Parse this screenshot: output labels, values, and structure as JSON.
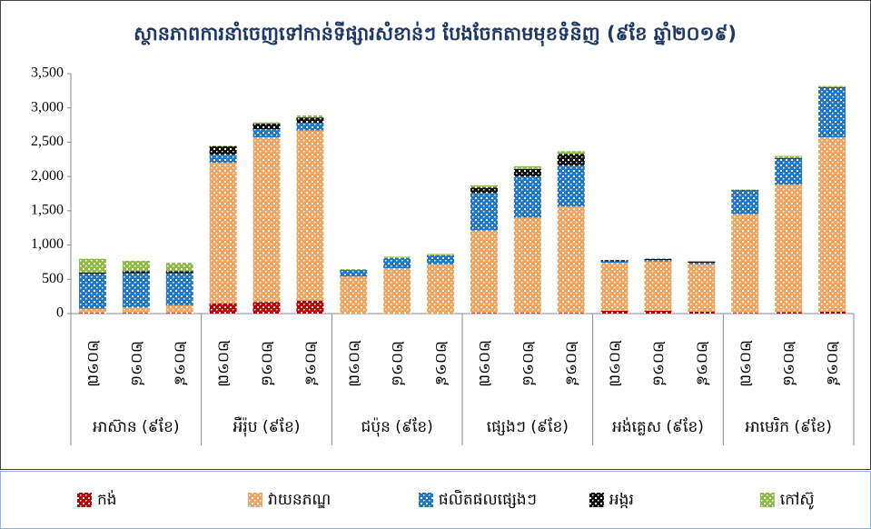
{
  "chart_data": {
    "type": "stacked_bar",
    "title": "ស្ថានភាពការនាំចេញទៅកាន់ទីផ្សារសំខាន់ៗ បែងចែកតាមមុខទំនិញ (៩ខែ ឆ្នាំ២០១៩)",
    "categories": [
      "២០១៧",
      "២០១៨",
      "២០១៩",
      "២០១៧",
      "២០១៨",
      "២០១៩",
      "២០១៧",
      "២០១៨",
      "២០១៩",
      "២០១៧",
      "២០១៨",
      "២០១៩",
      "២០១៧",
      "២០១៨",
      "២០១៩",
      "២០១៧",
      "២០១៨",
      "២០១៩"
    ],
    "groups": [
      "អាស៊ាន (៩ខែ)",
      "អឺរ៉ុប (៩ខែ)",
      "ជប៉ុន (៩ខែ)",
      "ផ្សេងៗ (៩ខែ)",
      "អង់គ្លេស (៩ខែ)",
      "អាមេរិក (៩ខែ)"
    ],
    "series": [
      {
        "name": "កង់",
        "color": "#c00000",
        "values": [
          10,
          10,
          10,
          150,
          170,
          190,
          0,
          0,
          0,
          10,
          10,
          10,
          40,
          40,
          30,
          10,
          20,
          30
        ]
      },
      {
        "name": "វាយនភណ្ឌ",
        "color": "#f4a460",
        "values": [
          60,
          80,
          110,
          2050,
          2400,
          2480,
          540,
          660,
          720,
          1200,
          1390,
          1550,
          700,
          720,
          690,
          1440,
          1860,
          2540
        ]
      },
      {
        "name": "ផលិតផលផ្សេងៗ",
        "color": "#1f77d0",
        "values": [
          510,
          500,
          470,
          120,
          120,
          110,
          100,
          150,
          130,
          550,
          600,
          600,
          20,
          20,
          20,
          340,
          380,
          720
        ]
      },
      {
        "name": "អង្ករ",
        "color": "#111111",
        "values": [
          20,
          30,
          30,
          120,
          80,
          80,
          0,
          0,
          0,
          80,
          110,
          170,
          20,
          20,
          20,
          10,
          10,
          10
        ]
      },
      {
        "name": "កៅស៊ូ",
        "color": "#8fbc45",
        "values": [
          200,
          150,
          120,
          10,
          20,
          30,
          10,
          20,
          20,
          30,
          40,
          40,
          0,
          0,
          0,
          10,
          30,
          20
        ]
      }
    ],
    "ylim": [
      0,
      3500
    ],
    "yticks": [
      0,
      500,
      {
        "value": 1000,
        "label": "1,000"
      },
      {
        "value": 1500,
        "label": "1,500"
      },
      {
        "value": 2000,
        "label": "2,000"
      },
      {
        "value": 2500,
        "label": "2,500"
      },
      {
        "value": 3000,
        "label": "3,000"
      },
      {
        "value": 3500,
        "label": "3,500"
      }
    ],
    "legend": "bottom"
  }
}
